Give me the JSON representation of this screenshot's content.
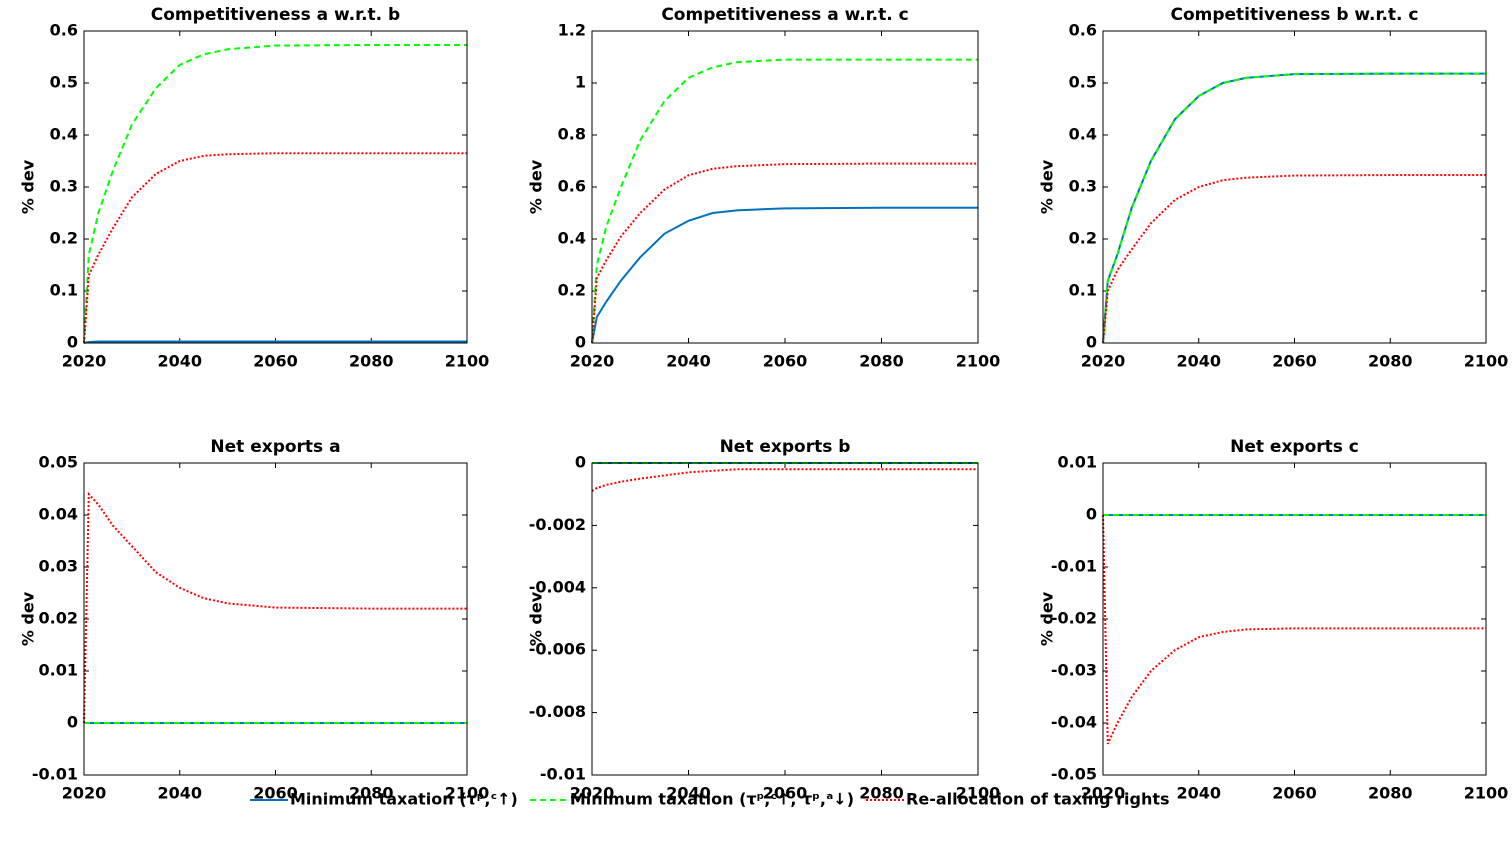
{
  "chart_data": [
    {
      "type": "line",
      "title": "Competitiveness a w.r.t. b",
      "ylabel": "% dev",
      "x": [
        2020,
        2021,
        2023,
        2026,
        2030,
        2035,
        2040,
        2045,
        2050,
        2060,
        2080,
        2100
      ],
      "xlim": [
        2020,
        2100
      ],
      "xticks": [
        2020,
        2040,
        2060,
        2080,
        2100
      ],
      "ylim": [
        0,
        0.6
      ],
      "yticks": [
        0,
        0.1,
        0.2,
        0.3,
        0.4,
        0.5,
        0.6
      ],
      "grid": false,
      "series": [
        {
          "name": "Minimum taxation (τᵖ,ᶜ↑)",
          "color": "#0072bd",
          "linestyle": "solid",
          "values": [
            0,
            0.002,
            0.003,
            0.003,
            0.003,
            0.003,
            0.003,
            0.003,
            0.003,
            0.003,
            0.003,
            0.003
          ]
        },
        {
          "name": "Minimum taxation (τᵖ,ᶜ↑, τᵖ,ᵃ↓)",
          "color": "#00ff00",
          "linestyle": "dashed",
          "values": [
            0,
            0.17,
            0.25,
            0.33,
            0.42,
            0.49,
            0.535,
            0.555,
            0.565,
            0.572,
            0.573,
            0.573
          ]
        },
        {
          "name": "Re-allocation of taxing rights",
          "color": "#ff0000",
          "linestyle": "dotted",
          "values": [
            0,
            0.13,
            0.17,
            0.22,
            0.28,
            0.325,
            0.35,
            0.36,
            0.363,
            0.365,
            0.365,
            0.365
          ]
        }
      ]
    },
    {
      "type": "line",
      "title": "Competitiveness a w.r.t. c",
      "ylabel": "% dev",
      "x": [
        2020,
        2021,
        2023,
        2026,
        2030,
        2035,
        2040,
        2045,
        2050,
        2060,
        2080,
        2100
      ],
      "xlim": [
        2020,
        2100
      ],
      "xticks": [
        2020,
        2040,
        2060,
        2080,
        2100
      ],
      "ylim": [
        0,
        1.2
      ],
      "yticks": [
        0,
        0.2,
        0.4,
        0.6,
        0.8,
        1,
        1.2
      ],
      "grid": false,
      "series": [
        {
          "color": "#0072bd",
          "linestyle": "solid",
          "values": [
            0,
            0.1,
            0.16,
            0.24,
            0.33,
            0.42,
            0.47,
            0.5,
            0.51,
            0.518,
            0.52,
            0.52
          ]
        },
        {
          "color": "#00ff00",
          "linestyle": "dashed",
          "values": [
            0,
            0.3,
            0.45,
            0.6,
            0.78,
            0.93,
            1.02,
            1.06,
            1.08,
            1.09,
            1.09,
            1.09
          ]
        },
        {
          "color": "#ff0000",
          "linestyle": "dotted",
          "values": [
            0,
            0.25,
            0.32,
            0.41,
            0.5,
            0.59,
            0.645,
            0.67,
            0.68,
            0.688,
            0.69,
            0.69
          ]
        }
      ]
    },
    {
      "type": "line",
      "title": "Competitiveness b w.r.t. c",
      "ylabel": "% dev",
      "x": [
        2020,
        2021,
        2023,
        2026,
        2030,
        2035,
        2040,
        2045,
        2050,
        2060,
        2080,
        2100
      ],
      "xlim": [
        2020,
        2100
      ],
      "xticks": [
        2020,
        2040,
        2060,
        2080,
        2100
      ],
      "ylim": [
        0,
        0.6
      ],
      "yticks": [
        0,
        0.1,
        0.2,
        0.3,
        0.4,
        0.5,
        0.6
      ],
      "grid": false,
      "series": [
        {
          "color": "#0072bd",
          "linestyle": "solid",
          "values": [
            0,
            0.12,
            0.17,
            0.26,
            0.35,
            0.43,
            0.475,
            0.5,
            0.51,
            0.517,
            0.518,
            0.518
          ]
        },
        {
          "color": "#00ff00",
          "linestyle": "dashed",
          "values": [
            0,
            0.12,
            0.17,
            0.26,
            0.35,
            0.43,
            0.475,
            0.5,
            0.51,
            0.517,
            0.518,
            0.518
          ]
        },
        {
          "color": "#ff0000",
          "linestyle": "dotted",
          "values": [
            0,
            0.1,
            0.14,
            0.18,
            0.23,
            0.275,
            0.3,
            0.313,
            0.318,
            0.322,
            0.323,
            0.323
          ]
        }
      ]
    },
    {
      "type": "line",
      "title": "Net exports a",
      "ylabel": "% dev",
      "x": [
        2020,
        2021,
        2023,
        2026,
        2030,
        2035,
        2040,
        2045,
        2050,
        2060,
        2080,
        2100
      ],
      "xlim": [
        2020,
        2100
      ],
      "xticks": [
        2020,
        2040,
        2060,
        2080,
        2100
      ],
      "ylim": [
        -0.01,
        0.05
      ],
      "yticks": [
        -0.01,
        0,
        0.01,
        0.02,
        0.03,
        0.04,
        0.05
      ],
      "grid": false,
      "series": [
        {
          "color": "#0072bd",
          "linestyle": "solid",
          "values": [
            0,
            0,
            0,
            0,
            0,
            0,
            0,
            0,
            0,
            0,
            0,
            0
          ]
        },
        {
          "color": "#00ff00",
          "linestyle": "dashed",
          "values": [
            0,
            0,
            0,
            0,
            0,
            0,
            0,
            0,
            0,
            0,
            0,
            0
          ]
        },
        {
          "color": "#ff0000",
          "linestyle": "dotted",
          "values": [
            0,
            0.044,
            0.042,
            0.038,
            0.034,
            0.029,
            0.026,
            0.024,
            0.023,
            0.0222,
            0.022,
            0.022
          ]
        }
      ]
    },
    {
      "type": "line",
      "title": "Net exports b",
      "ylabel": "% dev",
      "x": [
        2020,
        2021,
        2023,
        2026,
        2030,
        2035,
        2040,
        2045,
        2050,
        2060,
        2080,
        2100
      ],
      "xlim": [
        2020,
        2100
      ],
      "xticks": [
        2020,
        2040,
        2060,
        2080,
        2100
      ],
      "ylim": [
        -0.01,
        0
      ],
      "yticks": [
        -0.01,
        -0.008,
        -0.006,
        -0.004,
        -0.002,
        0
      ],
      "grid": false,
      "series": [
        {
          "color": "#0072bd",
          "linestyle": "solid",
          "values": [
            0,
            0,
            0,
            0,
            0,
            0,
            0,
            0,
            0,
            0,
            0,
            0
          ]
        },
        {
          "color": "#00ff00",
          "linestyle": "dashed",
          "values": [
            0,
            0,
            0,
            0,
            0,
            0,
            0,
            0,
            0,
            0,
            0,
            0
          ]
        },
        {
          "color": "#ff0000",
          "linestyle": "dotted",
          "values": [
            -0.0009,
            -0.0008,
            -0.0007,
            -0.0006,
            -0.0005,
            -0.0004,
            -0.0003,
            -0.00025,
            -0.0002,
            -0.0002,
            -0.0002,
            -0.0002
          ]
        }
      ]
    },
    {
      "type": "line",
      "title": "Net exports c",
      "ylabel": "% dev",
      "x": [
        2020,
        2021,
        2023,
        2026,
        2030,
        2035,
        2040,
        2045,
        2050,
        2060,
        2080,
        2100
      ],
      "xlim": [
        2020,
        2100
      ],
      "xticks": [
        2020,
        2040,
        2060,
        2080,
        2100
      ],
      "ylim": [
        -0.05,
        0.01
      ],
      "yticks": [
        -0.05,
        -0.04,
        -0.03,
        -0.02,
        -0.01,
        0,
        0.01
      ],
      "grid": false,
      "series": [
        {
          "color": "#0072bd",
          "linestyle": "solid",
          "values": [
            0,
            0,
            0,
            0,
            0,
            0,
            0,
            0,
            0,
            0,
            0,
            0
          ]
        },
        {
          "color": "#00ff00",
          "linestyle": "dashed",
          "values": [
            0,
            0,
            0,
            0,
            0,
            0,
            0,
            0,
            0,
            0,
            0,
            0
          ]
        },
        {
          "color": "#ff0000",
          "linestyle": "dotted",
          "values": [
            0,
            -0.044,
            -0.04,
            -0.035,
            -0.03,
            -0.026,
            -0.0235,
            -0.0225,
            -0.022,
            -0.0218,
            -0.0218,
            -0.0218
          ]
        }
      ]
    }
  ]
}
